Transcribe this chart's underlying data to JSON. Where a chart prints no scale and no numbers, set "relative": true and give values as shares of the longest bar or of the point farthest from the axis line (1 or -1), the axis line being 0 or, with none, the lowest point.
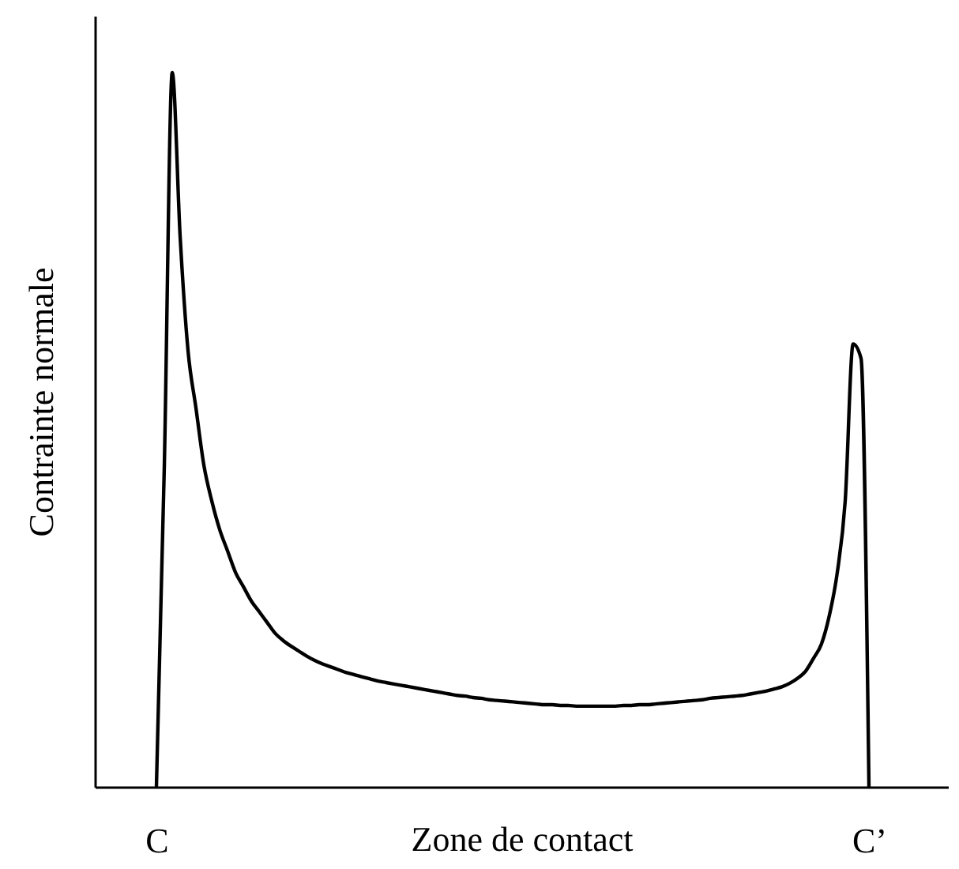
{
  "chart_data": {
    "type": "line",
    "relative": true,
    "xlabel": "Zone de contact",
    "ylabel": "Contrainte normale",
    "categories": [
      "C",
      null,
      null,
      null,
      null,
      null,
      null,
      null,
      null,
      null,
      null,
      null,
      null,
      null,
      null,
      null,
      null,
      null,
      null,
      null,
      null,
      null,
      null,
      null,
      null,
      null,
      null,
      null,
      null,
      null,
      null,
      null,
      null,
      null,
      null,
      null,
      null,
      null,
      null,
      null,
      null,
      null,
      null,
      null,
      null,
      null,
      null,
      null,
      null,
      null,
      null,
      null,
      null,
      null,
      null,
      null,
      null,
      null,
      null,
      null,
      null,
      null,
      null,
      null,
      null,
      null,
      null,
      null,
      null,
      null,
      null,
      null,
      null,
      null,
      null,
      null,
      null,
      null,
      null,
      null,
      null,
      null,
      null,
      null,
      null,
      null,
      null,
      null,
      null,
      null,
      "C’"
    ],
    "series": [
      {
        "color": "#000000",
        "values": [
          0,
          0.45,
          1.0,
          0.77,
          0.61,
          0.53,
          0.45,
          0.4,
          0.36,
          0.33,
          0.3,
          0.28,
          0.26,
          0.245,
          0.23,
          0.215,
          0.205,
          0.197,
          0.19,
          0.183,
          0.177,
          0.172,
          0.168,
          0.164,
          0.16,
          0.157,
          0.154,
          0.151,
          0.148,
          0.146,
          0.144,
          0.142,
          0.14,
          0.138,
          0.136,
          0.134,
          0.132,
          0.13,
          0.128,
          0.127,
          0.125,
          0.124,
          0.122,
          0.121,
          0.12,
          0.119,
          0.118,
          0.117,
          0.116,
          0.115,
          0.115,
          0.114,
          0.114,
          0.113,
          0.113,
          0.113,
          0.113,
          0.113,
          0.113,
          0.114,
          0.114,
          0.115,
          0.115,
          0.116,
          0.117,
          0.118,
          0.119,
          0.12,
          0.121,
          0.122,
          0.124,
          0.125,
          0.126,
          0.127,
          0.128,
          0.13,
          0.132,
          0.134,
          0.137,
          0.14,
          0.145,
          0.152,
          0.162,
          0.18,
          0.2,
          0.24,
          0.3,
          0.4,
          0.62,
          0.6,
          0
        ]
      }
    ],
    "grid": false,
    "legend": false,
    "marker": "none",
    "line_style": "solid"
  }
}
